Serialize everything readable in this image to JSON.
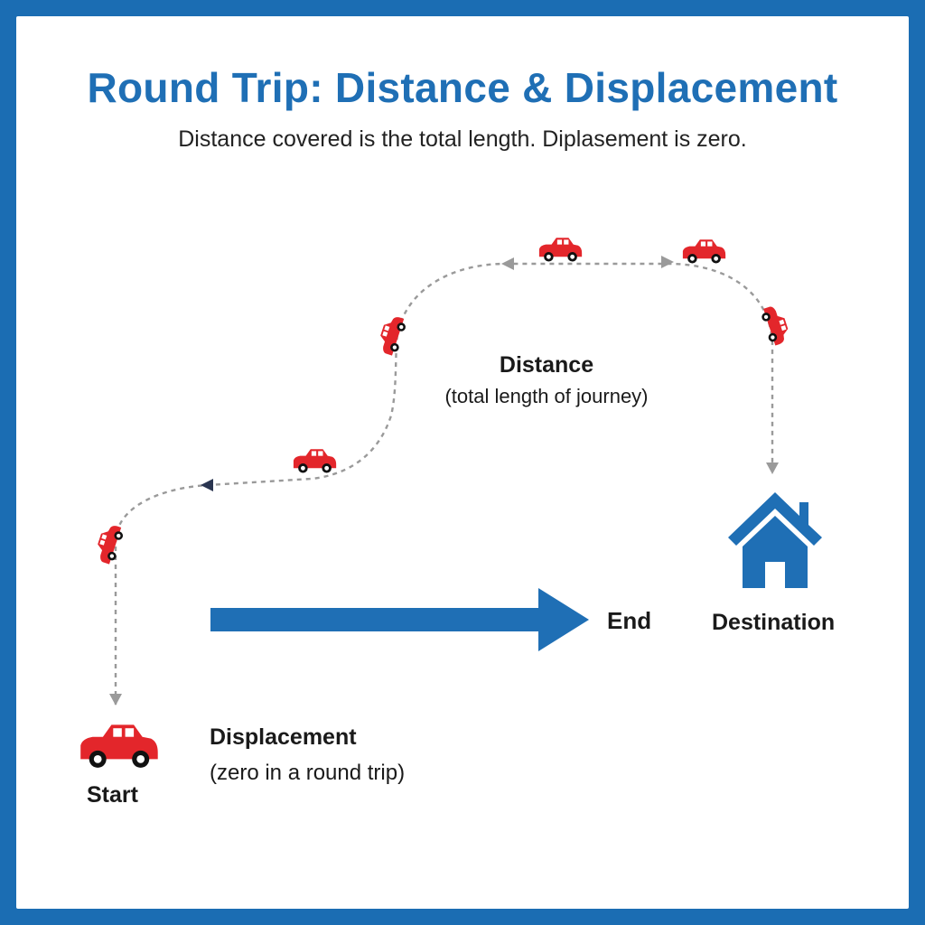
{
  "header": {
    "title": "Round Trip: Distance & Displacement",
    "subtitle": "Distance covered is the total length. Diplasement is zero."
  },
  "labels": {
    "distance": "Distance",
    "distance_note": "(total length of journey)",
    "end": "End",
    "destination": "Destination",
    "displacement": "Displacement",
    "displacement_note": "(zero in a round trip)",
    "start": "Start"
  },
  "colors": {
    "frame": "#1b6db3",
    "title": "#1f6fb5",
    "arrow": "#1f6fb5",
    "house": "#1f6fb5",
    "car": "#e3262b",
    "path": "#9a9a9a"
  },
  "icons": {
    "car": "car-icon",
    "house": "house-icon"
  }
}
